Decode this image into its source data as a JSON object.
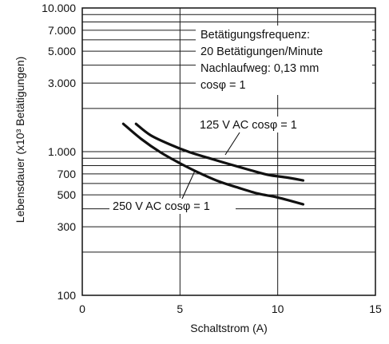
{
  "chart_data": {
    "type": "line",
    "xlabel": "Schaltstrom (A)",
    "ylabel": "Lebensdauer (x10³ Betätigungen)",
    "x_scale": "linear",
    "y_scale": "log",
    "xlim": [
      0,
      15
    ],
    "ylim": [
      100,
      10000
    ],
    "x_ticks": [
      0,
      5,
      10,
      15
    ],
    "x_tick_labels": [
      "0",
      "5",
      "10",
      "15"
    ],
    "y_ticks": [
      100,
      300,
      500,
      700,
      1000,
      3000,
      5000,
      7000,
      10000
    ],
    "y_tick_labels": [
      "100",
      "300",
      "500",
      "700",
      "1.000",
      "3.000",
      "5.000",
      "7.000",
      "10.000"
    ],
    "y_minor_gridlines": [
      200,
      400,
      600,
      800,
      900,
      2000,
      4000,
      6000,
      8000,
      9000
    ],
    "grid": true,
    "annotation_lines": [
      "Betätigungsfrequenz:",
      "20 Betätigungen/Minute",
      "Nachlaufweg: 0,13 mm",
      "cosφ = 1"
    ],
    "series": [
      {
        "name": "125 V AC cosφ = 1",
        "x": [
          2.75,
          3.5,
          4.5,
          5.5,
          6.5,
          7.5,
          8.5,
          9.5,
          10.5,
          11.3
        ],
        "y": [
          1560,
          1300,
          1120,
          990,
          900,
          820,
          750,
          690,
          660,
          630
        ]
      },
      {
        "name": "250 V AC cosφ = 1",
        "x": [
          2.1,
          3.0,
          4.0,
          5.0,
          6.0,
          7.0,
          8.0,
          9.0,
          10.0,
          11.3
        ],
        "y": [
          1560,
          1230,
          990,
          830,
          710,
          620,
          560,
          510,
          480,
          430
        ]
      }
    ]
  }
}
